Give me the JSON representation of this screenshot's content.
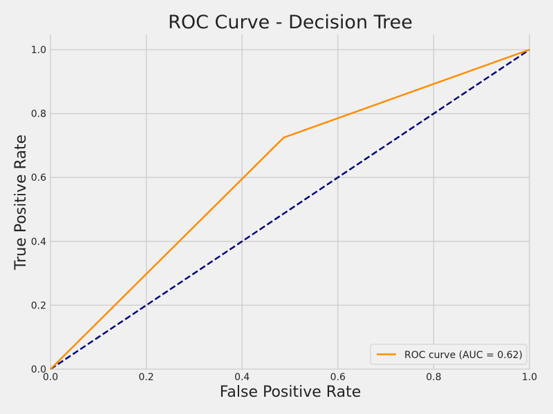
{
  "chart_data": {
    "type": "line",
    "title": "ROC Curve - Decision Tree",
    "xlabel": "False Positive Rate",
    "ylabel": "True Positive Rate",
    "xlim": [
      0.0,
      1.0
    ],
    "ylim": [
      0.0,
      1.0
    ],
    "xticks": [
      "0.0",
      "0.2",
      "0.4",
      "0.6",
      "0.8",
      "1.0"
    ],
    "yticks": [
      "0.0",
      "0.2",
      "0.4",
      "0.6",
      "0.8",
      "1.0"
    ],
    "grid": true,
    "legend_position": "lower-right",
    "series": [
      {
        "name": "ROC curve (AUC = 0.62)",
        "color": "#ff8c00",
        "style": "solid",
        "x": [
          0.0,
          0.487,
          1.0
        ],
        "y": [
          0.0,
          0.725,
          1.0
        ]
      },
      {
        "color": "#000080",
        "style": "dashed",
        "x": [
          0.0,
          1.0
        ],
        "y": [
          0.0,
          1.0
        ]
      }
    ]
  }
}
